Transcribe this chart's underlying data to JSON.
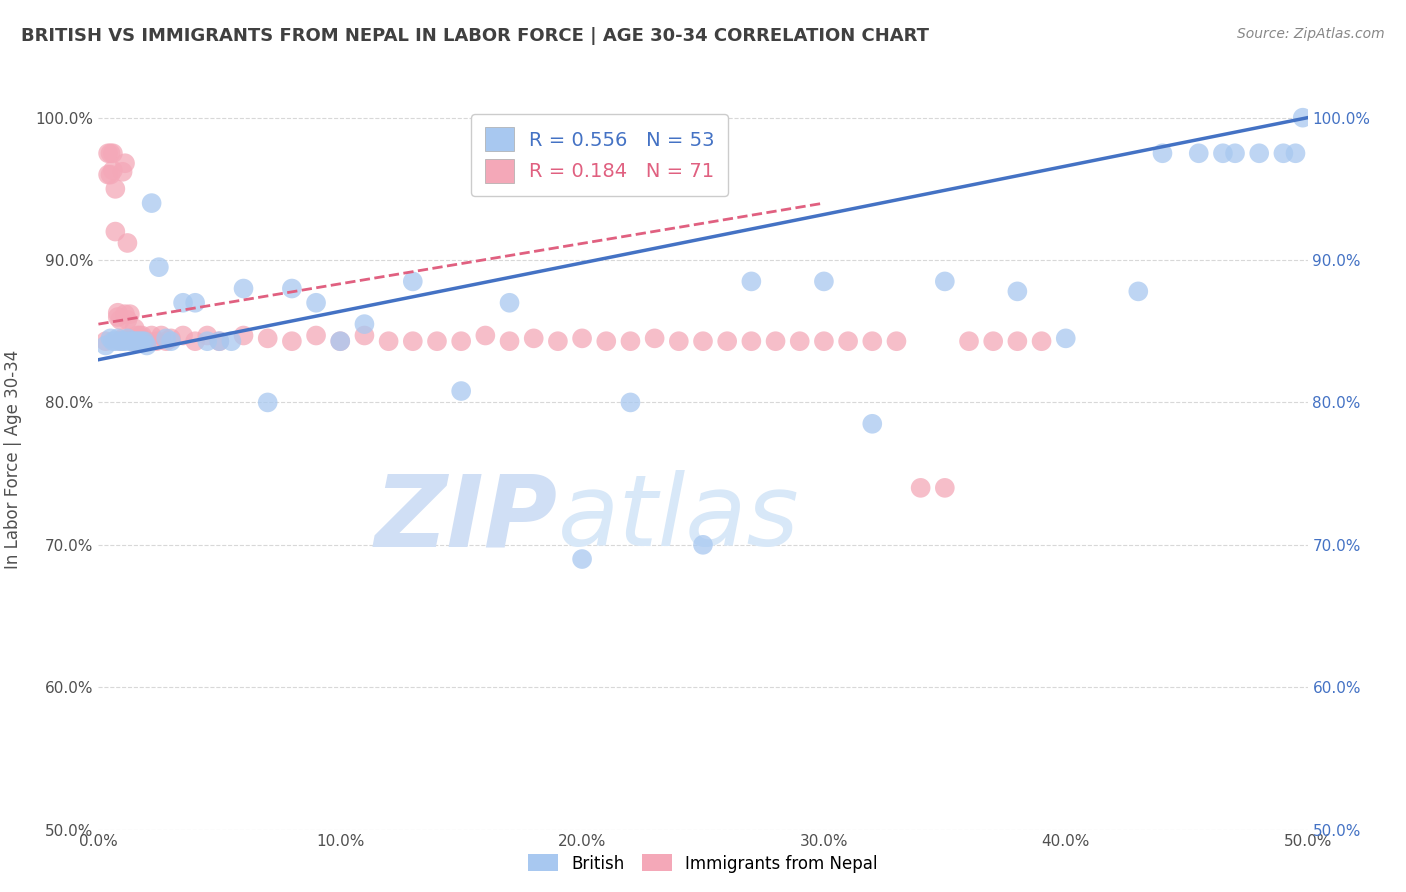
{
  "title": "BRITISH VS IMMIGRANTS FROM NEPAL IN LABOR FORCE | AGE 30-34 CORRELATION CHART",
  "source": "Source: ZipAtlas.com",
  "ylabel": "In Labor Force | Age 30-34",
  "xlim": [
    0.0,
    0.5
  ],
  "ylim": [
    0.5,
    1.02
  ],
  "xtick_labels": [
    "0.0%",
    "10.0%",
    "20.0%",
    "30.0%",
    "40.0%",
    "50.0%"
  ],
  "xtick_values": [
    0.0,
    0.1,
    0.2,
    0.3,
    0.4,
    0.5
  ],
  "ytick_labels": [
    "50.0%",
    "60.0%",
    "70.0%",
    "80.0%",
    "90.0%",
    "100.0%"
  ],
  "ytick_values": [
    0.5,
    0.6,
    0.7,
    0.8,
    0.9,
    1.0
  ],
  "watermark_zip": "ZIP",
  "watermark_atlas": "atlas",
  "british_color": "#a8c8f0",
  "nepal_color": "#f4a8b8",
  "british_line_color": "#4472c4",
  "nepal_line_color": "#e06080",
  "background_color": "#ffffff",
  "grid_color": "#d8d8d8",
  "title_color": "#404040",
  "axis_label_color": "#505050",
  "right_axis_color": "#4472c4",
  "watermark_color": "#d0dff5",
  "legend_british_text_color": "#4472c4",
  "legend_nepal_text_color": "#e06080",
  "british_x": [
    0.003,
    0.005,
    0.006,
    0.007,
    0.008,
    0.009,
    0.01,
    0.011,
    0.012,
    0.013,
    0.014,
    0.015,
    0.016,
    0.017,
    0.018,
    0.019,
    0.02,
    0.022,
    0.025,
    0.028,
    0.03,
    0.035,
    0.04,
    0.045,
    0.05,
    0.055,
    0.06,
    0.07,
    0.08,
    0.09,
    0.1,
    0.11,
    0.13,
    0.15,
    0.17,
    0.2,
    0.22,
    0.25,
    0.27,
    0.3,
    0.32,
    0.35,
    0.38,
    0.4,
    0.43,
    0.44,
    0.455,
    0.465,
    0.47,
    0.48,
    0.49,
    0.495,
    0.498
  ],
  "british_y": [
    0.84,
    0.845,
    0.843,
    0.843,
    0.845,
    0.843,
    0.843,
    0.843,
    0.845,
    0.843,
    0.843,
    0.843,
    0.843,
    0.843,
    0.843,
    0.843,
    0.84,
    0.94,
    0.895,
    0.845,
    0.843,
    0.87,
    0.87,
    0.843,
    0.843,
    0.843,
    0.88,
    0.8,
    0.88,
    0.87,
    0.843,
    0.855,
    0.885,
    0.808,
    0.87,
    0.69,
    0.8,
    0.7,
    0.885,
    0.885,
    0.785,
    0.885,
    0.878,
    0.845,
    0.878,
    0.975,
    0.975,
    0.975,
    0.975,
    0.975,
    0.975,
    0.975,
    1.0
  ],
  "nepal_x": [
    0.003,
    0.004,
    0.004,
    0.005,
    0.005,
    0.006,
    0.006,
    0.007,
    0.007,
    0.008,
    0.008,
    0.009,
    0.009,
    0.01,
    0.01,
    0.011,
    0.011,
    0.012,
    0.012,
    0.013,
    0.013,
    0.014,
    0.015,
    0.016,
    0.017,
    0.018,
    0.019,
    0.02,
    0.022,
    0.024,
    0.026,
    0.028,
    0.03,
    0.035,
    0.04,
    0.045,
    0.05,
    0.06,
    0.07,
    0.08,
    0.09,
    0.1,
    0.11,
    0.12,
    0.13,
    0.14,
    0.15,
    0.16,
    0.17,
    0.18,
    0.19,
    0.2,
    0.21,
    0.22,
    0.23,
    0.24,
    0.25,
    0.26,
    0.27,
    0.28,
    0.29,
    0.3,
    0.31,
    0.32,
    0.33,
    0.34,
    0.35,
    0.36,
    0.37,
    0.38,
    0.39
  ],
  "nepal_y": [
    0.843,
    0.96,
    0.975,
    0.96,
    0.975,
    0.963,
    0.975,
    0.92,
    0.95,
    0.86,
    0.863,
    0.843,
    0.858,
    0.962,
    0.845,
    0.862,
    0.968,
    0.858,
    0.912,
    0.845,
    0.862,
    0.843,
    0.852,
    0.847,
    0.847,
    0.847,
    0.843,
    0.843,
    0.847,
    0.843,
    0.847,
    0.843,
    0.845,
    0.847,
    0.843,
    0.847,
    0.843,
    0.847,
    0.845,
    0.843,
    0.847,
    0.843,
    0.847,
    0.843,
    0.843,
    0.843,
    0.843,
    0.847,
    0.843,
    0.845,
    0.843,
    0.845,
    0.843,
    0.843,
    0.845,
    0.843,
    0.843,
    0.843,
    0.843,
    0.843,
    0.843,
    0.843,
    0.843,
    0.843,
    0.843,
    0.74,
    0.74,
    0.843,
    0.843,
    0.843,
    0.843
  ],
  "british_trend_x0": 0.0,
  "british_trend_y0": 0.83,
  "british_trend_x1": 0.5,
  "british_trend_y1": 1.0,
  "nepal_trend_x0": 0.0,
  "nepal_trend_y0": 0.855,
  "nepal_trend_x1": 0.3,
  "nepal_trend_y1": 0.94
}
